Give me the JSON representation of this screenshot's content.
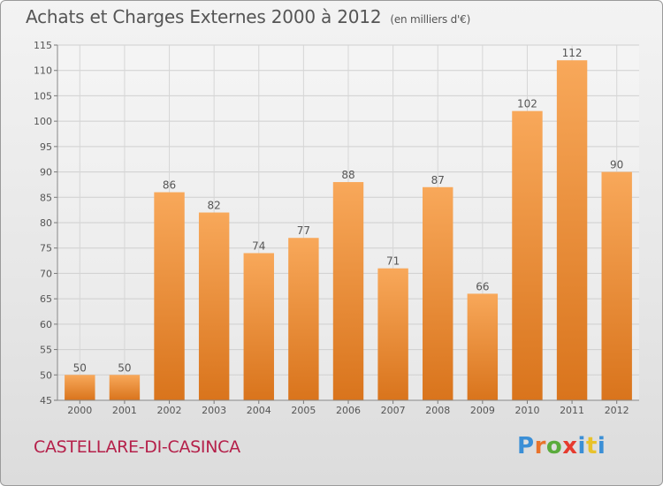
{
  "chart_data": {
    "type": "bar",
    "title": "Achats et Charges Externes 2000 à 2012",
    "subtitle": "(en milliers d'€)",
    "categories": [
      "2000",
      "2001",
      "2002",
      "2003",
      "2004",
      "2005",
      "2006",
      "2007",
      "2008",
      "2009",
      "2010",
      "2011",
      "2012"
    ],
    "values": [
      50,
      50,
      86,
      82,
      74,
      77,
      88,
      71,
      87,
      66,
      102,
      112,
      90
    ],
    "ylim": [
      45,
      115
    ],
    "yticks": [
      45,
      50,
      55,
      60,
      65,
      70,
      75,
      80,
      85,
      90,
      95,
      100,
      105,
      110,
      115
    ],
    "xlabel": "",
    "ylabel": "",
    "grid": true,
    "bar_color_light": "#f8a85a",
    "bar_color_dark": "#d9741c"
  },
  "commune": "CASTELLARE-DI-CASINCA",
  "logo": {
    "text": "Proxiti",
    "letter_colors": [
      "#3b8fd6",
      "#e8732b",
      "#5aab3c",
      "#e63a2e",
      "#3b8fd6",
      "#e8c22b",
      "#3b8fd6"
    ]
  }
}
